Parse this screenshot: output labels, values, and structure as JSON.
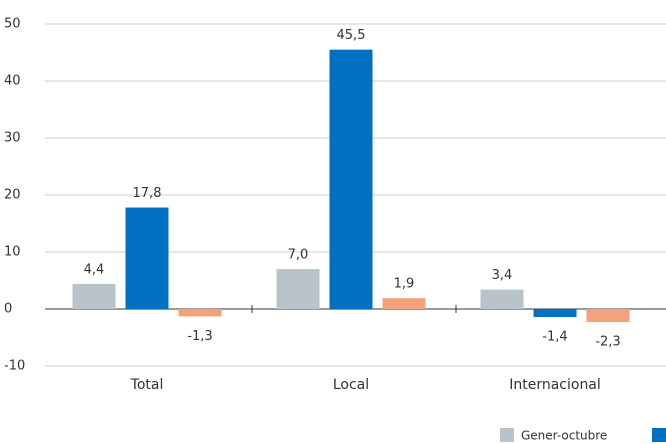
{
  "chart_data": {
    "type": "bar",
    "categories": [
      "Total",
      "Local",
      "Internacional"
    ],
    "series": [
      {
        "name": "Gener-octubre",
        "color": "#b9c3ca",
        "values": [
          4.4,
          7.0,
          3.4
        ],
        "value_labels": [
          "4,4",
          "7,0",
          "3,4"
        ]
      },
      {
        "color": "#0070c0",
        "values": [
          17.8,
          45.5,
          -1.4
        ],
        "value_labels": [
          "17,8",
          "45,5",
          "-1,4"
        ]
      },
      {
        "color": "#f5a27c",
        "values": [
          -1.3,
          1.9,
          -2.3
        ],
        "value_labels": [
          "-1,3",
          "1,9",
          "-2,3"
        ]
      }
    ],
    "ylim": [
      -10,
      50
    ],
    "yticks": [
      -10,
      0,
      10,
      20,
      30,
      40,
      50
    ],
    "grid": true
  }
}
